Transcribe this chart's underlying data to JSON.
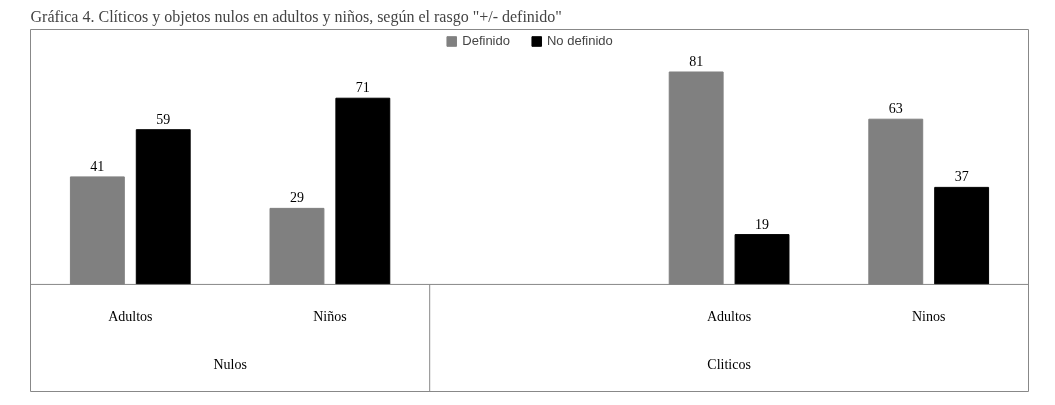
{
  "chart_data": {
    "type": "bar",
    "title": "Gráfica 4. Clíticos y objetos nulos en adultos y niños, según el rasgo \"+/- definido\"",
    "categories": [
      "Adultos",
      "Niños",
      null,
      "Adultos",
      "Ninos"
    ],
    "series": [
      {
        "name": "Definido",
        "color": "#808080",
        "values": [
          41,
          29,
          null,
          81,
          63
        ]
      },
      {
        "name": "No definido",
        "color": "#000000",
        "values": [
          59,
          71,
          null,
          19,
          37
        ]
      }
    ],
    "annotations": [
      "Nulos",
      "Cliticos"
    ],
    "data_labels": true,
    "legend": "top",
    "grid": false
  }
}
